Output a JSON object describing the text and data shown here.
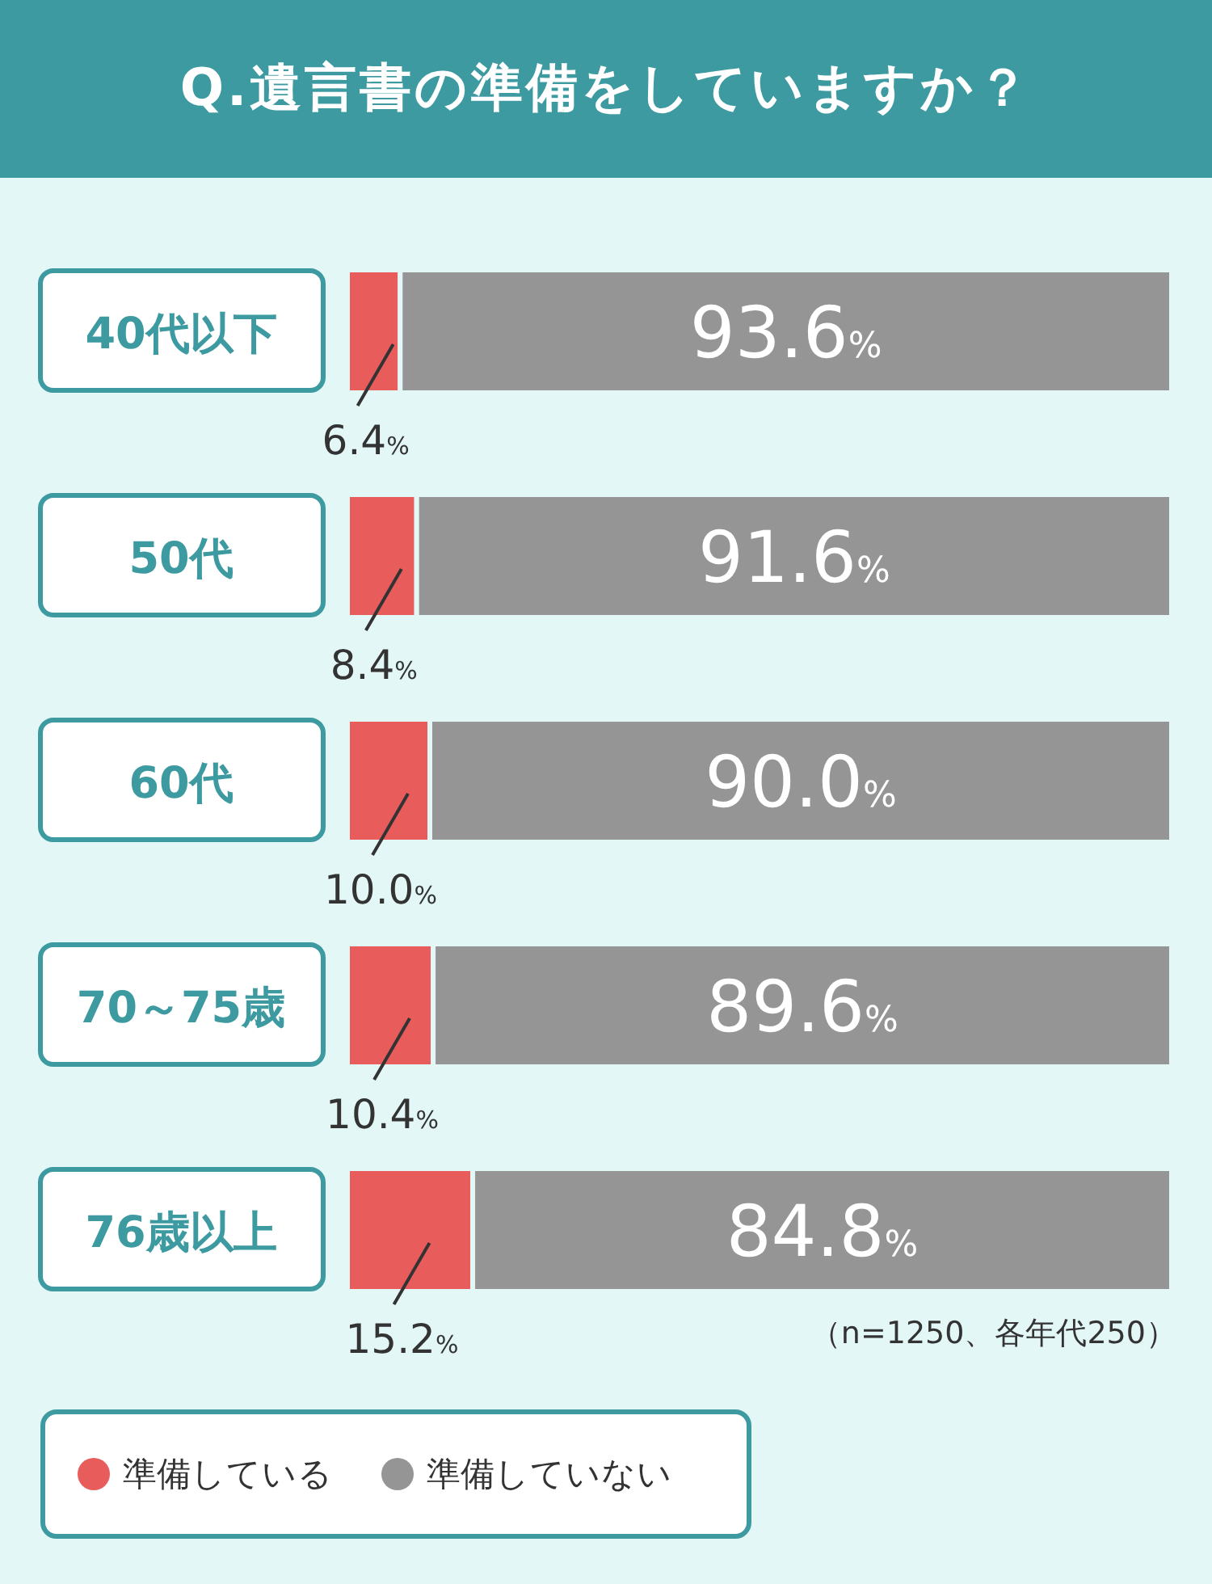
{
  "chart_data": {
    "type": "bar",
    "orientation": "horizontal",
    "stacked": true,
    "title": "Q.遺言書の準備をしていますか？",
    "categories": [
      "40代以下",
      "50代",
      "60代",
      "70～75歳",
      "76歳以上"
    ],
    "series": [
      {
        "name": "準備している",
        "color": "#e85c5c",
        "values": [
          6.4,
          8.4,
          10.0,
          10.4,
          15.2
        ],
        "value_labels": [
          "6.4%",
          "8.4%",
          "10.0%",
          "10.4%",
          "15.2%"
        ]
      },
      {
        "name": "準備していない",
        "color": "#959595",
        "values": [
          93.6,
          91.6,
          90.0,
          89.6,
          84.8
        ],
        "value_labels": [
          "93.6%",
          "91.6%",
          "90.0%",
          "89.6%",
          "84.8%"
        ]
      }
    ],
    "legend": "bottom left",
    "grid": false,
    "annotations": [
      "（n=1250、各年代250）"
    ]
  }
}
